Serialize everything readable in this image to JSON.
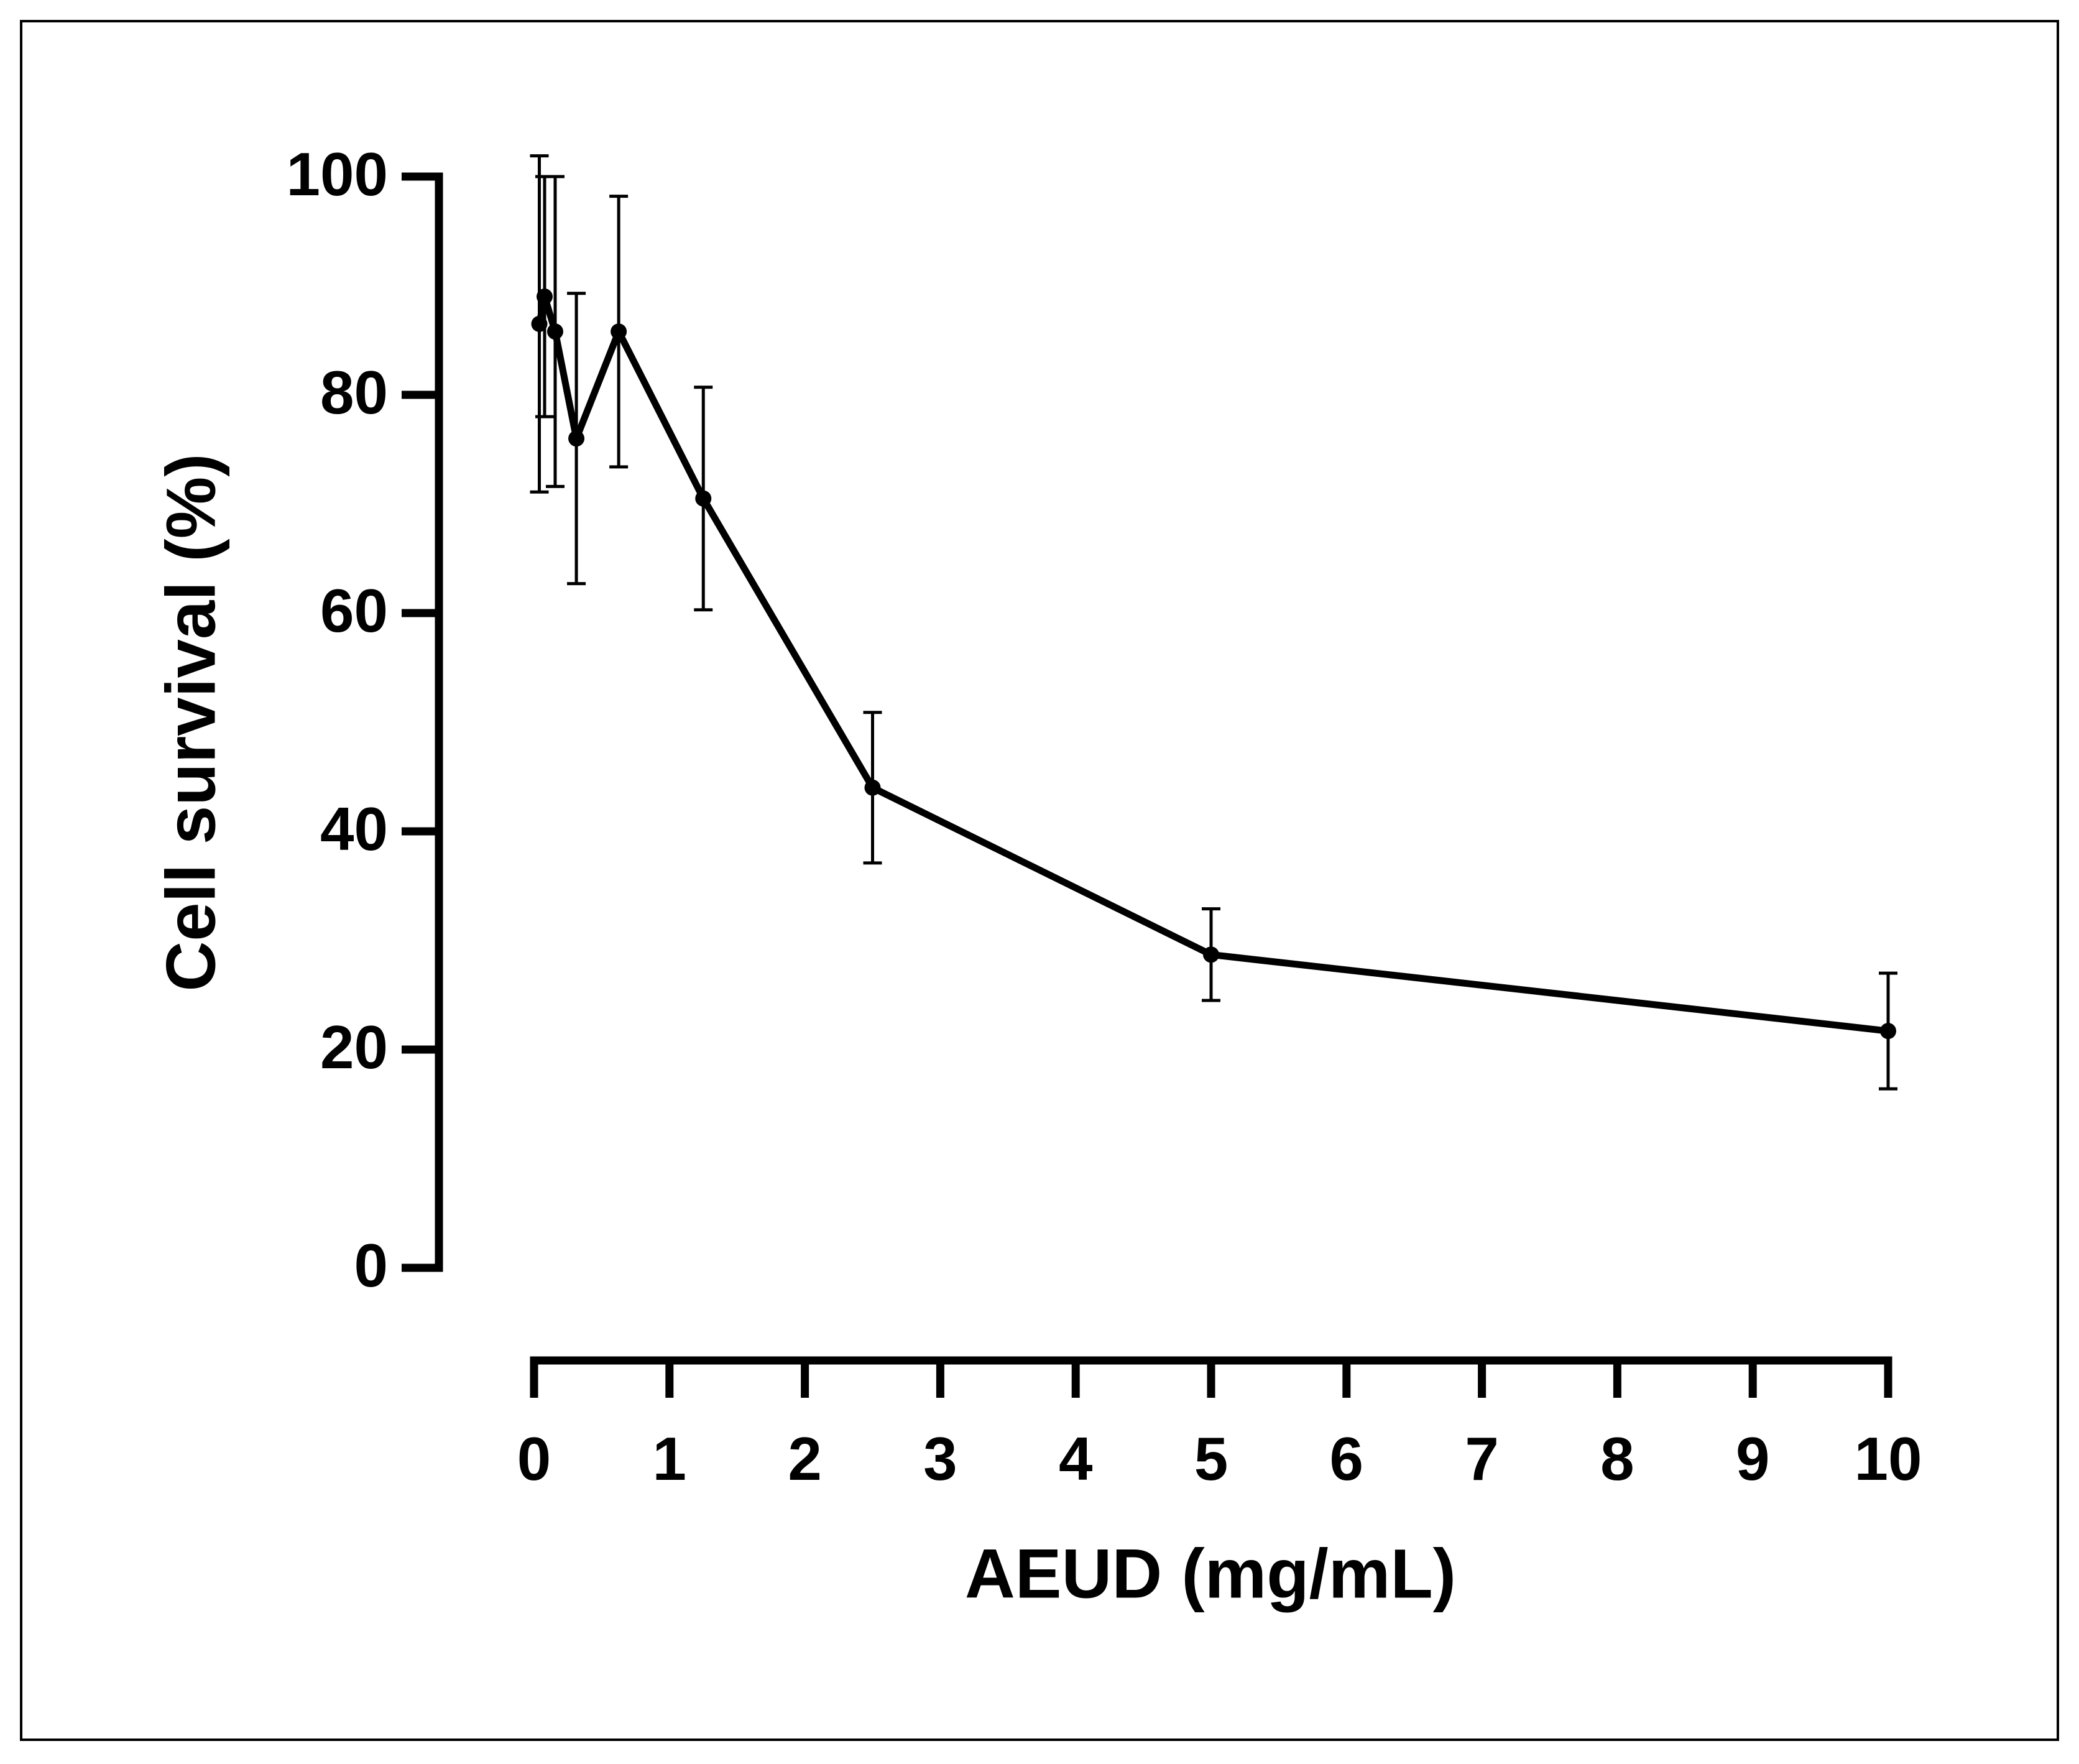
{
  "chart_data": {
    "type": "line",
    "x_label": "AEUD (mg/mL)",
    "y_label": "Cell survival (%)",
    "x": [
      0.039,
      0.078,
      0.156,
      0.3125,
      0.625,
      1.25,
      2.5,
      5,
      10
    ],
    "series": [
      {
        "color": "#000000",
        "values": [
          86.5,
          89,
          85.8,
          76,
          85.8,
          70.5,
          44,
          28.7,
          21.7
        ],
        "errors": [
          15.4,
          11,
          14.2,
          13.3,
          12.4,
          10.2,
          6.9,
          4.2,
          5.3
        ]
      }
    ],
    "xlim": [
      0,
      10
    ],
    "xticks": [
      0,
      1,
      2,
      3,
      4,
      5,
      6,
      7,
      8,
      9,
      10
    ],
    "ylim": [
      0,
      100
    ],
    "yticks": [
      0,
      20,
      40,
      60,
      80,
      100
    ],
    "grid": false
  }
}
